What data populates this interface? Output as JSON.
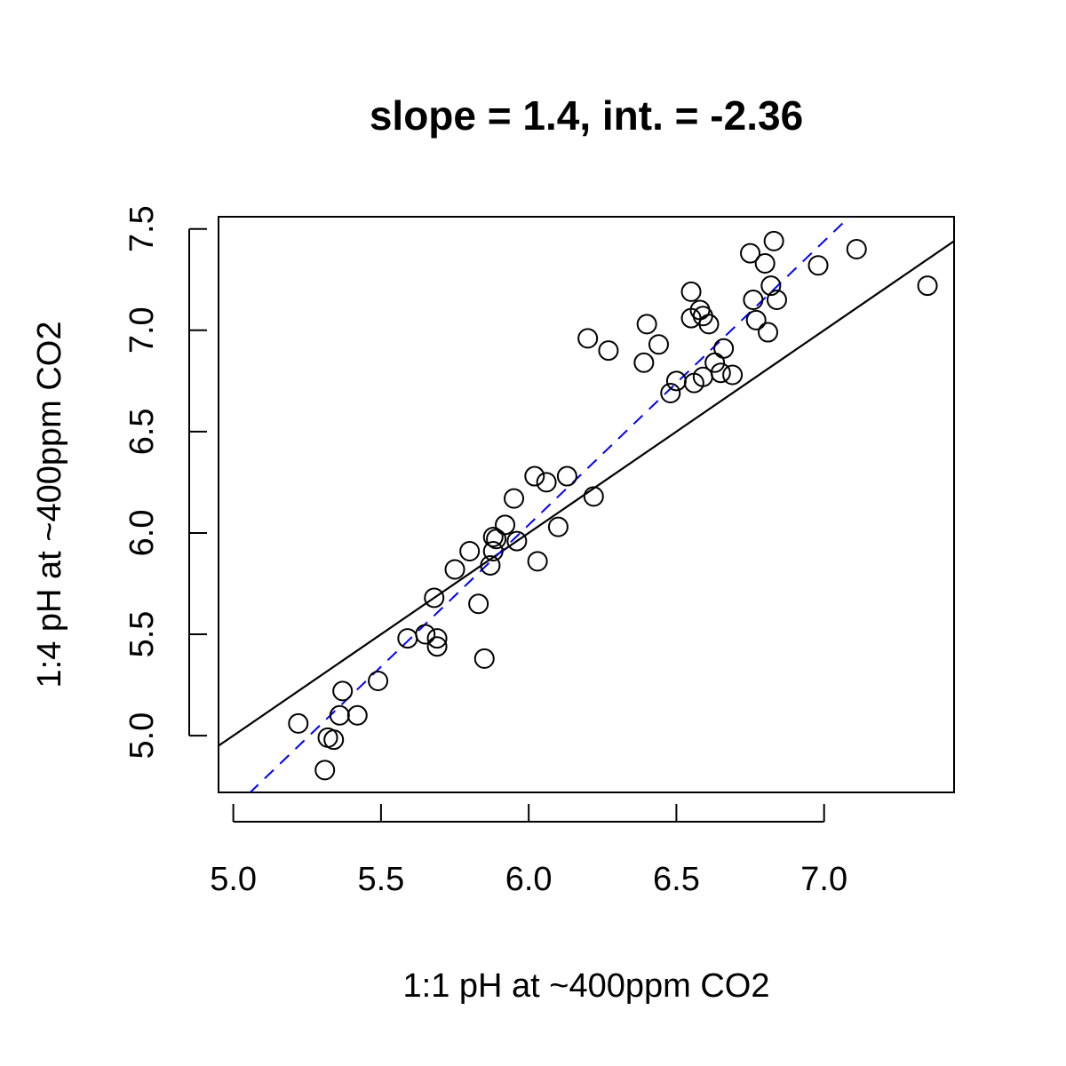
{
  "chart_data": {
    "type": "scatter",
    "title": "slope = 1.4, int. = -2.36",
    "xlabel": "1:1 pH at ~400ppm CO2",
    "ylabel": "1:4 pH at ~400ppm CO2",
    "xlim": [
      4.95,
      7.44
    ],
    "ylim": [
      4.72,
      7.56
    ],
    "xticks": [
      "5.0",
      "5.5",
      "6.0",
      "6.5",
      "7.0"
    ],
    "yticks": [
      "5.0",
      "5.5",
      "6.0",
      "6.5",
      "7.0",
      "7.5"
    ],
    "grid": false,
    "legend": "none",
    "points": {
      "x": [
        5.22,
        5.31,
        5.32,
        5.34,
        5.36,
        5.37,
        5.42,
        5.49,
        5.59,
        5.65,
        5.68,
        5.69,
        5.69,
        5.75,
        5.8,
        5.83,
        5.85,
        5.87,
        5.88,
        5.88,
        5.89,
        5.92,
        5.95,
        5.96,
        6.02,
        6.03,
        6.06,
        6.1,
        6.13,
        6.2,
        6.22,
        6.27,
        6.39,
        6.4,
        6.44,
        6.48,
        6.5,
        6.55,
        6.55,
        6.56,
        6.58,
        6.59,
        6.59,
        6.61,
        6.63,
        6.65,
        6.66,
        6.69,
        6.75,
        6.76,
        6.77,
        6.8,
        6.81,
        6.82,
        6.83,
        6.84,
        6.98,
        7.11,
        7.35
      ],
      "y": [
        5.06,
        4.83,
        4.99,
        4.98,
        5.1,
        5.22,
        5.1,
        5.27,
        5.48,
        5.5,
        5.68,
        5.48,
        5.44,
        5.82,
        5.91,
        5.65,
        5.38,
        5.84,
        5.91,
        5.98,
        5.97,
        6.04,
        6.17,
        5.96,
        6.28,
        5.86,
        6.25,
        6.03,
        6.28,
        6.96,
        6.18,
        6.9,
        6.84,
        7.03,
        6.93,
        6.69,
        6.75,
        7.19,
        7.06,
        6.74,
        7.1,
        6.77,
        7.07,
        7.03,
        6.84,
        6.79,
        6.91,
        6.78,
        7.38,
        7.15,
        7.05,
        7.33,
        6.99,
        7.22,
        7.44,
        7.15,
        7.32,
        7.4,
        7.22
      ]
    },
    "lines": [
      {
        "style": "solid",
        "color": "#000000",
        "slope": 1.0,
        "intercept": 0.0
      },
      {
        "style": "dashed",
        "color": "#0000ff",
        "slope": 1.4,
        "intercept": -2.36
      }
    ]
  }
}
